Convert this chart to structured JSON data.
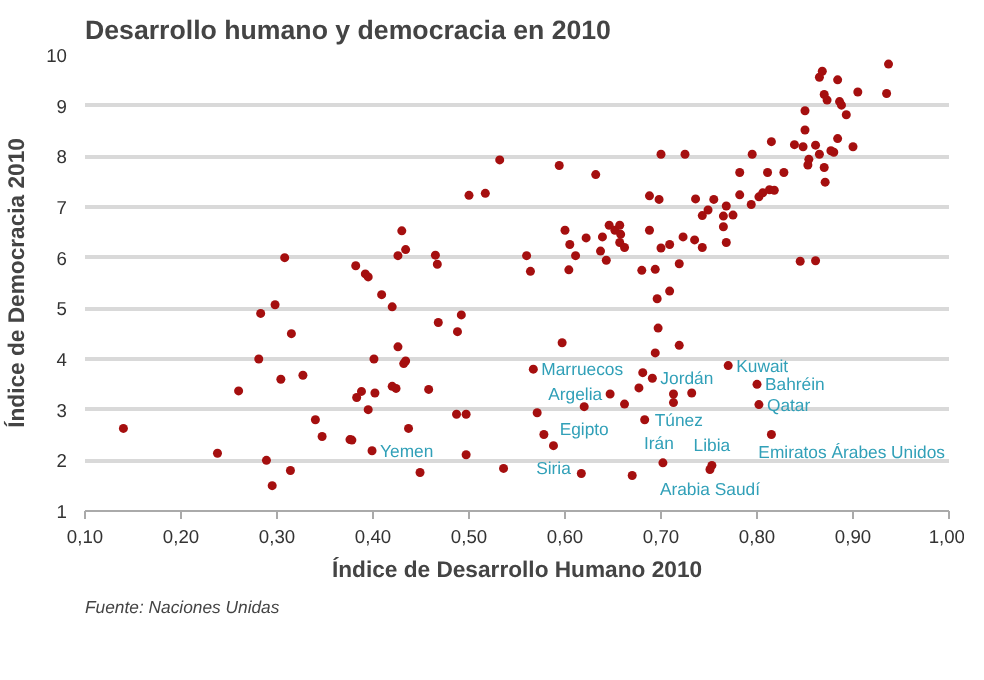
{
  "chart_data": {
    "type": "scatter",
    "title": "Desarrollo humano y democracia en 2010",
    "xlabel": "Índice de Desarrollo Humano 2010",
    "ylabel": "Índice de Democracia 2010",
    "xlim": [
      0.1,
      1.0
    ],
    "ylim": [
      1,
      10
    ],
    "xticks": [
      {
        "value": 0.1,
        "label": "0,10"
      },
      {
        "value": 0.2,
        "label": "0,20"
      },
      {
        "value": 0.3,
        "label": "0,30"
      },
      {
        "value": 0.4,
        "label": "0,40"
      },
      {
        "value": 0.5,
        "label": "0,50"
      },
      {
        "value": 0.6,
        "label": "0,60"
      },
      {
        "value": 0.7,
        "label": "0,70"
      },
      {
        "value": 0.8,
        "label": "0,80"
      },
      {
        "value": 0.9,
        "label": "0,90"
      },
      {
        "value": 1.0,
        "label": "1,00"
      }
    ],
    "yticks": [
      1,
      2,
      3,
      4,
      5,
      6,
      7,
      8,
      9,
      10
    ],
    "grid": "y",
    "marker": "circle",
    "series": [
      {
        "color": "#a50f0f",
        "x": [
          0.14,
          0.238,
          0.26,
          0.281,
          0.283,
          0.298,
          0.308,
          0.315,
          0.304,
          0.327,
          0.34,
          0.347,
          0.289,
          0.295,
          0.314,
          0.378,
          0.382,
          0.392,
          0.395,
          0.409,
          0.42,
          0.401,
          0.383,
          0.388,
          0.402,
          0.395,
          0.376,
          0.399,
          0.42,
          0.424,
          0.426,
          0.432,
          0.434,
          0.43,
          0.434,
          0.426,
          0.437,
          0.449,
          0.458,
          0.465,
          0.467,
          0.468,
          0.488,
          0.492,
          0.487,
          0.497,
          0.497,
          0.5,
          0.517,
          0.532,
          0.536,
          0.56,
          0.564,
          0.567,
          0.571,
          0.578,
          0.588,
          0.597,
          0.594,
          0.6,
          0.605,
          0.611,
          0.604,
          0.62,
          0.617,
          0.622,
          0.632,
          0.639,
          0.637,
          0.643,
          0.646,
          0.652,
          0.657,
          0.658,
          0.657,
          0.662,
          0.647,
          0.662,
          0.67,
          0.677,
          0.68,
          0.681,
          0.683,
          0.688,
          0.688,
          0.691,
          0.694,
          0.694,
          0.696,
          0.698,
          0.7,
          0.7,
          0.702,
          0.697,
          0.709,
          0.709,
          0.719,
          0.719,
          0.723,
          0.725,
          0.735,
          0.736,
          0.743,
          0.743,
          0.749,
          0.755,
          0.713,
          0.713,
          0.732,
          0.753,
          0.751,
          0.765,
          0.765,
          0.768,
          0.768,
          0.775,
          0.77,
          0.782,
          0.782,
          0.794,
          0.795,
          0.802,
          0.806,
          0.811,
          0.813,
          0.818,
          0.815,
          0.8,
          0.802,
          0.815,
          0.828,
          0.839,
          0.845,
          0.848,
          0.85,
          0.85,
          0.853,
          0.854,
          0.861,
          0.861,
          0.865,
          0.868,
          0.87,
          0.873,
          0.865,
          0.87,
          0.871,
          0.877,
          0.88,
          0.884,
          0.884,
          0.886,
          0.888,
          0.893,
          0.9,
          0.905,
          0.935,
          0.937
        ],
        "values": [
          2.63,
          2.14,
          3.37,
          4.0,
          4.9,
          5.07,
          6.0,
          4.5,
          3.6,
          3.68,
          2.8,
          2.47,
          2.0,
          1.5,
          1.8,
          2.4,
          5.84,
          5.68,
          5.62,
          5.27,
          5.03,
          4.0,
          3.24,
          3.36,
          3.33,
          3.0,
          2.41,
          2.19,
          3.46,
          3.42,
          4.24,
          3.91,
          3.96,
          6.53,
          6.16,
          6.04,
          2.63,
          1.76,
          3.4,
          6.05,
          5.87,
          4.72,
          4.54,
          4.87,
          2.91,
          2.91,
          2.11,
          7.23,
          7.27,
          7.93,
          1.84,
          6.04,
          5.73,
          3.8,
          2.94,
          2.51,
          2.29,
          4.32,
          7.82,
          6.54,
          6.26,
          6.04,
          5.76,
          3.06,
          1.74,
          6.39,
          7.64,
          6.41,
          6.13,
          5.95,
          6.64,
          6.54,
          6.64,
          6.46,
          6.3,
          6.2,
          3.31,
          3.11,
          1.7,
          3.43,
          5.75,
          3.73,
          2.8,
          6.54,
          7.22,
          3.62,
          5.77,
          4.12,
          5.19,
          7.15,
          8.04,
          6.19,
          1.95,
          4.61,
          6.26,
          5.34,
          5.88,
          4.27,
          6.41,
          8.04,
          6.35,
          7.16,
          6.2,
          6.83,
          6.94,
          7.15,
          3.31,
          3.14,
          3.33,
          1.9,
          1.82,
          6.82,
          6.61,
          6.3,
          7.02,
          6.84,
          3.87,
          7.24,
          7.68,
          7.05,
          8.04,
          7.2,
          7.28,
          7.68,
          7.34,
          7.33,
          8.29,
          3.5,
          3.1,
          2.51,
          7.68,
          8.23,
          5.93,
          8.19,
          8.9,
          8.52,
          7.83,
          7.94,
          5.94,
          8.22,
          9.56,
          9.68,
          9.22,
          9.11,
          8.04,
          7.78,
          7.49,
          8.11,
          8.08,
          9.51,
          8.35,
          9.08,
          9.01,
          8.82,
          8.19,
          9.27,
          9.24,
          9.82
        ]
      }
    ],
    "annotations": [
      {
        "text": "Marruecos",
        "x": 0.567,
        "y": 3.8
      },
      {
        "text": "Argelia",
        "x": 0.647,
        "y": 3.31
      },
      {
        "text": "Egipto",
        "x": 0.62,
        "y": 3.06
      },
      {
        "text": "Siria",
        "x": 0.588,
        "y": 2.29
      },
      {
        "text": "Yemen",
        "x": 0.399,
        "y": 2.19
      },
      {
        "text": "Jordán",
        "x": 0.691,
        "y": 3.62
      },
      {
        "text": "Túnez",
        "x": 0.683,
        "y": 2.8
      },
      {
        "text": "Irán",
        "x": 0.702,
        "y": 1.95
      },
      {
        "text": "Libia",
        "x": 0.753,
        "y": 1.9
      },
      {
        "text": "Arabia Saudí",
        "x": 0.751,
        "y": 1.82
      },
      {
        "text": "Kuwait",
        "x": 0.77,
        "y": 3.87
      },
      {
        "text": "Bahréin",
        "x": 0.8,
        "y": 3.5
      },
      {
        "text": "Qatar",
        "x": 0.802,
        "y": 3.1
      },
      {
        "text": "Emiratos Árabes Unidos",
        "x": 0.815,
        "y": 2.51
      },
      "Fuente: Naciones Unidas"
    ]
  }
}
